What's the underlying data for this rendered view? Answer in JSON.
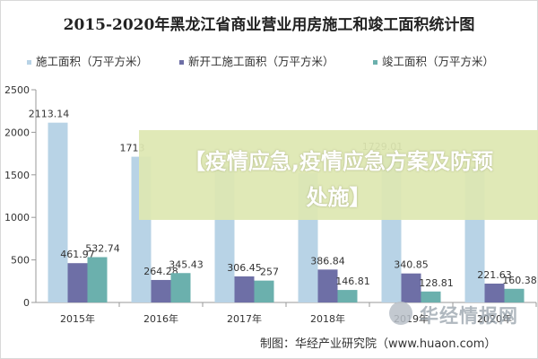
{
  "chart_data": {
    "type": "bar",
    "title": "2015-2020年黑龙江省商业营业用房施工和竣工面积统计图",
    "categories": [
      "2015年",
      "2016年",
      "2017年",
      "2018年",
      "2019年",
      "2020年"
    ],
    "series": [
      {
        "name": "施工面积（万平方米）",
        "color": "#b8d3e6",
        "values": [
          2113.14,
          1713,
          1600,
          1520,
          1729.01,
          1600
        ],
        "labels": [
          "2113.14",
          "1713",
          "",
          "",
          "1729.01",
          ""
        ]
      },
      {
        "name": "新开工施工面积（万平方米）",
        "color": "#6e6fa6",
        "values": [
          461.97,
          264.28,
          306.45,
          386.84,
          340.85,
          221.63
        ],
        "labels": [
          "461.97",
          "264.28",
          "306.45",
          "386.84",
          "340.85",
          "221.63"
        ]
      },
      {
        "name": "竣工面积（万平方米）",
        "color": "#6bb0ad",
        "values": [
          532.74,
          345.43,
          257,
          146.81,
          128.81,
          160.38
        ],
        "labels": [
          "532.74",
          "345.43",
          "257",
          "146.81",
          "128.81",
          "160.38"
        ]
      }
    ],
    "ylim": [
      0,
      2500
    ],
    "yticks": [
      0,
      500,
      1000,
      1500,
      2000,
      2500
    ],
    "ytick_labels": [
      "0",
      "500",
      "1000",
      "1500",
      "2000",
      "2500"
    ],
    "grid": false,
    "legend_position": "top"
  },
  "banner": {
    "line1": "【疫情应急,疫情应急方案及防预",
    "line2": "处施】"
  },
  "source": "制图：华经产业研究院（www.huaon.com）",
  "watermark": "华经情报网"
}
